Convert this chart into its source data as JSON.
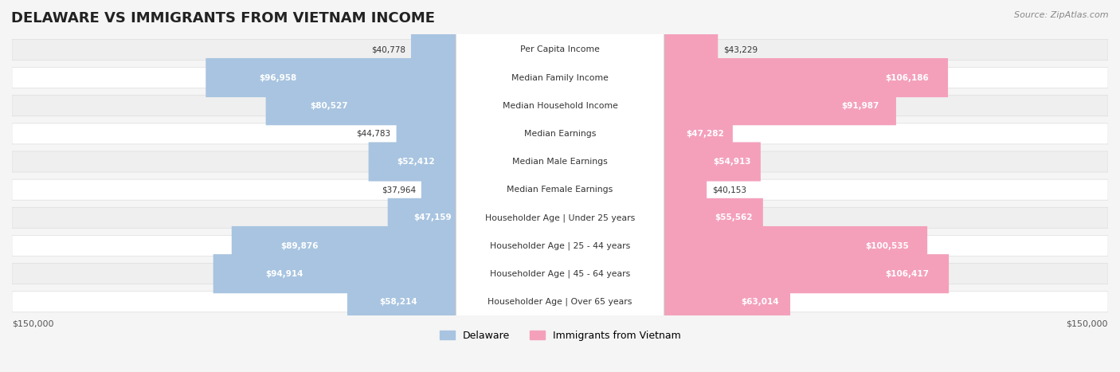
{
  "title": "DELAWARE VS IMMIGRANTS FROM VIETNAM INCOME",
  "source": "Source: ZipAtlas.com",
  "categories": [
    "Per Capita Income",
    "Median Family Income",
    "Median Household Income",
    "Median Earnings",
    "Median Male Earnings",
    "Median Female Earnings",
    "Householder Age | Under 25 years",
    "Householder Age | 25 - 44 years",
    "Householder Age | 45 - 64 years",
    "Householder Age | Over 65 years"
  ],
  "delaware_values": [
    40778,
    96958,
    80527,
    44783,
    52412,
    37964,
    47159,
    89876,
    94914,
    58214
  ],
  "vietnam_values": [
    43229,
    106186,
    91987,
    47282,
    54913,
    40153,
    55562,
    100535,
    106417,
    63014
  ],
  "delaware_labels": [
    "$40,778",
    "$96,958",
    "$80,527",
    "$44,783",
    "$52,412",
    "$37,964",
    "$47,159",
    "$89,876",
    "$94,914",
    "$58,214"
  ],
  "vietnam_labels": [
    "$43,229",
    "$106,186",
    "$91,987",
    "$47,282",
    "$54,913",
    "$40,153",
    "$55,562",
    "$100,535",
    "$106,417",
    "$63,014"
  ],
  "max_value": 150000,
  "delaware_color": "#a8c4e0",
  "delaware_dark_color": "#6fa8d4",
  "vietnam_color": "#f4a0bb",
  "vietnam_dark_color": "#f06090",
  "background_color": "#f5f5f5",
  "row_bg_color": "#efefef",
  "row_alt_bg_color": "#ffffff",
  "label_center_bg": "#ffffff",
  "label_center_border": "#cccccc"
}
